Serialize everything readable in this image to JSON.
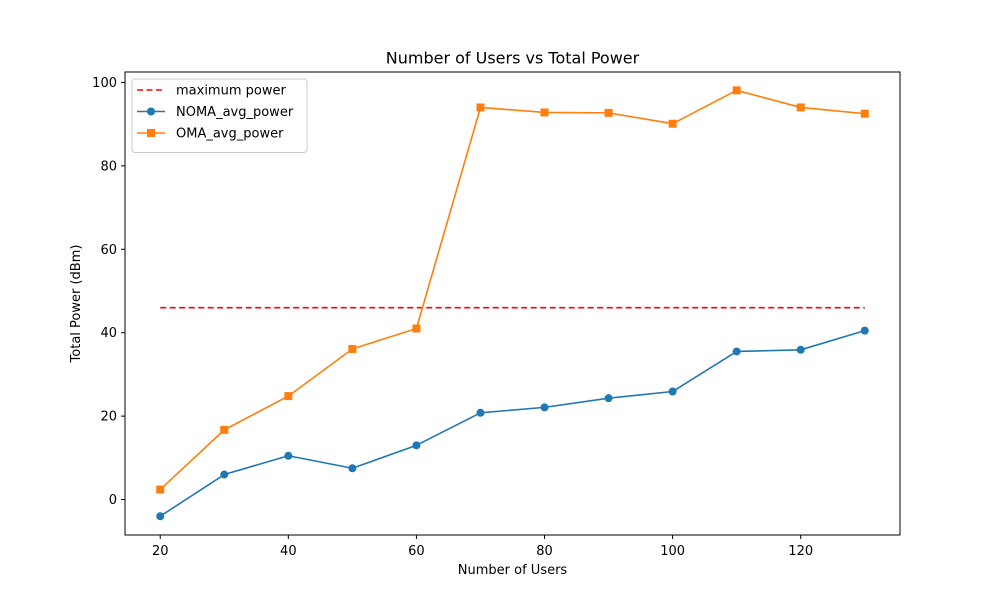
{
  "chart_data": {
    "type": "line",
    "title": "Number of Users vs Total Power",
    "xlabel": "Number of Users",
    "ylabel": "Total Power (dBm)",
    "xlim": [
      14.5,
      135.5
    ],
    "ylim": [
      -8.5,
      102.5
    ],
    "xticks": [
      20,
      40,
      60,
      80,
      100,
      120
    ],
    "yticks": [
      0,
      20,
      40,
      60,
      80,
      100
    ],
    "grid": false,
    "legend_position": "upper-left",
    "x": [
      20,
      30,
      40,
      50,
      60,
      70,
      80,
      90,
      100,
      110,
      120,
      130
    ],
    "series": [
      {
        "name": "maximum power",
        "style": "dashed",
        "marker": "none",
        "color": "#ff0000",
        "values": [
          46,
          46,
          46,
          46,
          46,
          46,
          46,
          46,
          46,
          46,
          46,
          46
        ]
      },
      {
        "name": "NOMA_avg_power",
        "style": "solid",
        "marker": "circle",
        "color": "#1f77b4",
        "values": [
          -4,
          6,
          10.5,
          7.5,
          13,
          20.8,
          22.1,
          24.3,
          25.9,
          35.5,
          35.9,
          40.5
        ]
      },
      {
        "name": "OMA_avg_power",
        "style": "solid",
        "marker": "square",
        "color": "#ff7f0e",
        "values": [
          2.4,
          16.7,
          24.8,
          36.1,
          41,
          94,
          92.8,
          92.7,
          90.1,
          98.1,
          94,
          92.5
        ]
      }
    ]
  }
}
